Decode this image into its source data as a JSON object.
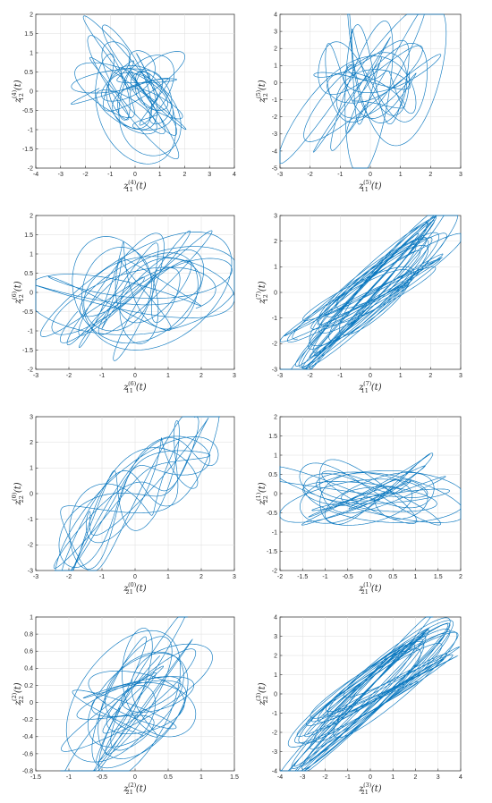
{
  "figure": {
    "line_color": "#0072BD",
    "grid": true
  },
  "chart_data": [
    {
      "type": "line",
      "xlabel": {
        "var": "z",
        "sub": "11",
        "sup": "(4)"
      },
      "ylabel": {
        "var": "z",
        "sub": "12",
        "sup": "(4)"
      },
      "xlim": [
        -4,
        4
      ],
      "ylim": [
        -2,
        2
      ],
      "xticks": [
        "-4",
        "-3",
        "-2",
        "-1",
        "0",
        "1",
        "2",
        "3",
        "4"
      ],
      "yticks": [
        "-2",
        "-1.5",
        "-1",
        "-0.5",
        "0",
        "0.5",
        "1",
        "1.5",
        "2"
      ],
      "trajectory": {
        "amp": [
          2.7,
          1.35
        ],
        "corr": -0.45,
        "noise": 0.6,
        "seed": 4
      }
    },
    {
      "type": "line",
      "xlabel": {
        "var": "z",
        "sub": "11",
        "sup": "(5)"
      },
      "ylabel": {
        "var": "z",
        "sub": "12",
        "sup": "(5)"
      },
      "xlim": [
        -3,
        3
      ],
      "ylim": [
        -5,
        4
      ],
      "xticks": [
        "-3",
        "-2",
        "-1",
        "0",
        "1",
        "2",
        "3"
      ],
      "yticks": [
        "-5",
        "-4",
        "-3",
        "-2",
        "-1",
        "0",
        "1",
        "2",
        "3",
        "4"
      ],
      "trajectory": {
        "amp": [
          2.1,
          3.6
        ],
        "corr": 0.1,
        "noise": 0.55,
        "seed": 5
      }
    },
    {
      "type": "line",
      "xlabel": {
        "var": "z",
        "sub": "11",
        "sup": "(6)"
      },
      "ylabel": {
        "var": "z",
        "sub": "12",
        "sup": "(6)"
      },
      "xlim": [
        -3,
        3
      ],
      "ylim": [
        -2,
        2
      ],
      "xticks": [
        "-3",
        "-2",
        "-1",
        "0",
        "1",
        "2",
        "3"
      ],
      "yticks": [
        "-2",
        "-1.5",
        "-1",
        "-0.5",
        "0",
        "0.5",
        "1",
        "1.5",
        "2"
      ],
      "trajectory": {
        "amp": [
          2.3,
          1.3
        ],
        "corr": 0.35,
        "noise": 0.6,
        "seed": 6
      }
    },
    {
      "type": "line",
      "xlabel": {
        "var": "z",
        "sub": "11",
        "sup": "(7)"
      },
      "ylabel": {
        "var": "z",
        "sub": "12",
        "sup": "(7)"
      },
      "xlim": [
        -3,
        3
      ],
      "ylim": [
        -3,
        3
      ],
      "xticks": [
        "-3",
        "-2",
        "-1",
        "0",
        "1",
        "2",
        "3"
      ],
      "yticks": [
        "-3",
        "-2",
        "-1",
        "0",
        "1",
        "2",
        "3"
      ],
      "trajectory": {
        "amp": [
          2.2,
          2.2
        ],
        "corr": 0.92,
        "noise": 0.25,
        "seed": 7
      }
    },
    {
      "type": "line",
      "xlabel": {
        "var": "z",
        "sub": "21",
        "sup": "(0)"
      },
      "ylabel": {
        "var": "z",
        "sub": "22",
        "sup": "(0)"
      },
      "xlim": [
        -3,
        3
      ],
      "ylim": [
        -3,
        3
      ],
      "xticks": [
        "-3",
        "-2",
        "-1",
        "0",
        "1",
        "2",
        "3"
      ],
      "yticks": [
        "-3",
        "-2",
        "-1",
        "0",
        "1",
        "2",
        "3"
      ],
      "trajectory": {
        "amp": [
          2.1,
          2.5
        ],
        "corr": 0.85,
        "noise": 0.3,
        "seed": 8
      }
    },
    {
      "type": "line",
      "xlabel": {
        "var": "z",
        "sub": "21",
        "sup": "(1)"
      },
      "ylabel": {
        "var": "z",
        "sub": "22",
        "sup": "(1)"
      },
      "xlim": [
        -2,
        2
      ],
      "ylim": [
        -2,
        2
      ],
      "xticks": [
        "-2",
        "-1.5",
        "-1",
        "-0.5",
        "0",
        "0.5",
        "1",
        "1.5",
        "2"
      ],
      "yticks": [
        "-2",
        "-1.5",
        "-1",
        "-0.5",
        "0",
        "0.5",
        "1",
        "1.5",
        "2"
      ],
      "trajectory": {
        "amp": [
          1.75,
          0.75
        ],
        "corr": 0.05,
        "noise": 0.45,
        "seed": 9
      }
    },
    {
      "type": "line",
      "xlabel": {
        "var": "z",
        "sub": "21",
        "sup": "(2)"
      },
      "ylabel": {
        "var": "z",
        "sub": "22",
        "sup": "(2)"
      },
      "xlim": [
        -1.5,
        1.5
      ],
      "ylim": [
        -0.8,
        1
      ],
      "xticks": [
        "-1.5",
        "-1",
        "-0.5",
        "0",
        "0.5",
        "1",
        "1.5"
      ],
      "yticks": [
        "-0.8",
        "-0.6",
        "-0.4",
        "-0.2",
        "0",
        "0.2",
        "0.4",
        "0.6",
        "0.8",
        "1"
      ],
      "trajectory": {
        "amp": [
          0.9,
          0.75
        ],
        "corr": 0.55,
        "noise": 0.55,
        "seed": 10
      }
    },
    {
      "type": "line",
      "xlabel": {
        "var": "z",
        "sub": "21",
        "sup": "(3)"
      },
      "ylabel": {
        "var": "z",
        "sub": "22",
        "sup": "(3)"
      },
      "xlim": [
        -4,
        4
      ],
      "ylim": [
        -4,
        4
      ],
      "xticks": [
        "-4",
        "-3",
        "-2",
        "-1",
        "0",
        "1",
        "2",
        "3",
        "4"
      ],
      "yticks": [
        "-4",
        "-3",
        "-2",
        "-1",
        "0",
        "1",
        "2",
        "3",
        "4"
      ],
      "trajectory": {
        "amp": [
          3.2,
          3.2
        ],
        "corr": 0.93,
        "noise": 0.25,
        "seed": 11
      }
    }
  ]
}
